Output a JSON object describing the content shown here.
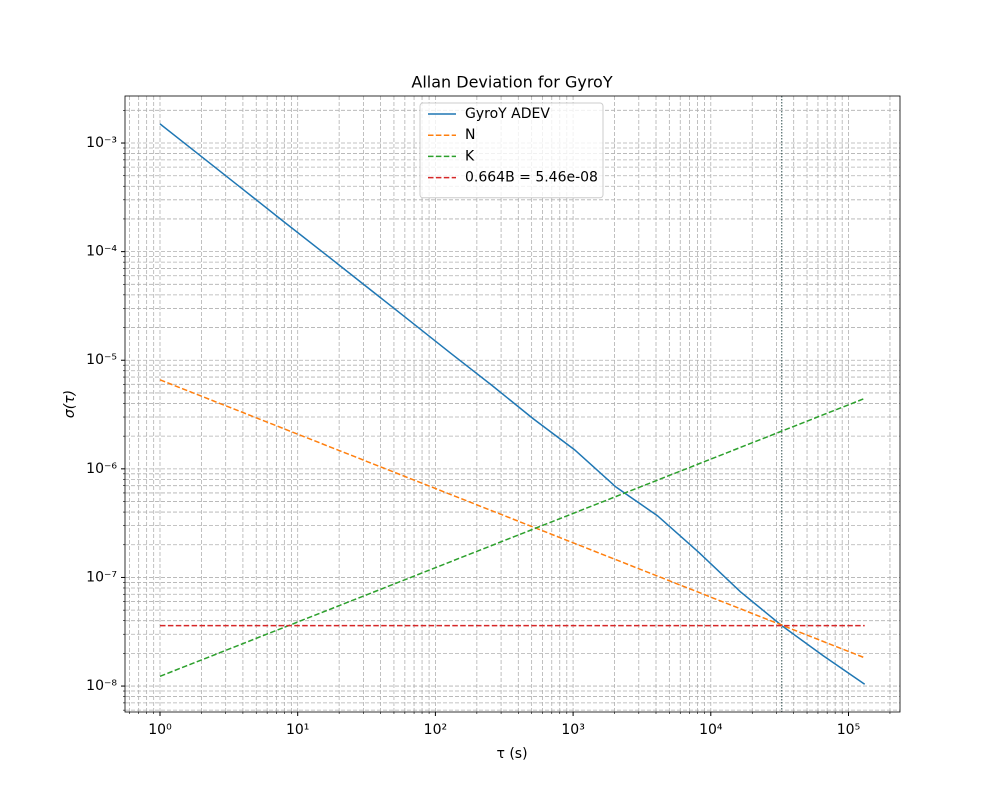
{
  "chart_data": {
    "type": "line",
    "title": "Allan Deviation for GyroY",
    "x_label": "τ (s)",
    "y_label": "σ(τ)",
    "log_x": true,
    "log_y": true,
    "grid": true,
    "minor_grid": true,
    "legend_position": "top-center",
    "xlim": [
      0.557,
      236600
    ],
    "ylim": [
      5.77e-09,
      0.00271
    ],
    "xticks": [
      {
        "value": 1,
        "label": "10⁰"
      },
      {
        "value": 10,
        "label": "10¹"
      },
      {
        "value": 100,
        "label": "10²"
      },
      {
        "value": 1000,
        "label": "10³"
      },
      {
        "value": 10000,
        "label": "10⁴"
      },
      {
        "value": 100000,
        "label": "10⁵"
      }
    ],
    "yticks": [
      {
        "value": 1e-08,
        "label": "10⁻⁸"
      },
      {
        "value": 1e-07,
        "label": "10⁻⁷"
      },
      {
        "value": 1e-06,
        "label": "10⁻⁶"
      },
      {
        "value": 1e-05,
        "label": "10⁻⁵"
      },
      {
        "value": 0.0001,
        "label": "10⁻⁴"
      },
      {
        "value": 0.001,
        "label": "10⁻³"
      }
    ],
    "series": [
      {
        "name": "GyroY ADEV",
        "color": "#1f77b4",
        "dashed": false,
        "x": [
          1,
          2,
          4,
          8,
          16,
          32,
          64,
          128,
          256,
          512,
          1024,
          2048,
          4096,
          8192,
          16384,
          32768,
          65536,
          131072
        ],
        "values": [
          0.0015,
          0.00075,
          0.000375,
          0.000187,
          9.4e-05,
          4.7e-05,
          2.35e-05,
          1.17e-05,
          5.9e-06,
          2.9e-06,
          1.5e-06,
          6.8e-07,
          3.7e-07,
          1.7e-07,
          7.4e-08,
          3.6e-08,
          1.9e-08,
          1.04e-08
        ]
      },
      {
        "name": "N",
        "color": "#ff7f0e",
        "dashed": true,
        "x": [
          1,
          131072
        ],
        "values": [
          6.6e-06,
          1.82e-08
        ]
      },
      {
        "name": "K",
        "color": "#2ca02c",
        "dashed": true,
        "x": [
          1,
          131072
        ],
        "values": [
          1.23e-08,
          4.45e-06
        ]
      },
      {
        "name": "0.664B = 5.46e-08",
        "color": "#d62728",
        "dashed": true,
        "x": [
          1,
          131072
        ],
        "values": [
          3.6e-08,
          3.6e-08
        ]
      }
    ],
    "vline": {
      "x": 32768,
      "color": "#2f4f4f"
    }
  }
}
